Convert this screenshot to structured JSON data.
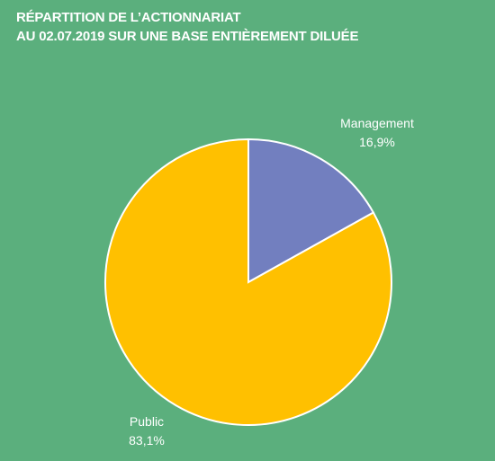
{
  "chart_data": {
    "type": "pie",
    "title": "RÉPARTITION DE L’ACTIONNARIAT",
    "subtitle": "AU 02.07.2019 SUR UNE BASE ENTIÈREMENT DILUÉE",
    "slices": [
      {
        "name": "Management",
        "value": 16.9,
        "value_label": "16,9%",
        "color": "#727FBF"
      },
      {
        "name": "Public",
        "value": 83.1,
        "value_label": "83,1%",
        "color": "#FFC000"
      }
    ],
    "legend": "none",
    "background_color": "#5BAF7D"
  }
}
